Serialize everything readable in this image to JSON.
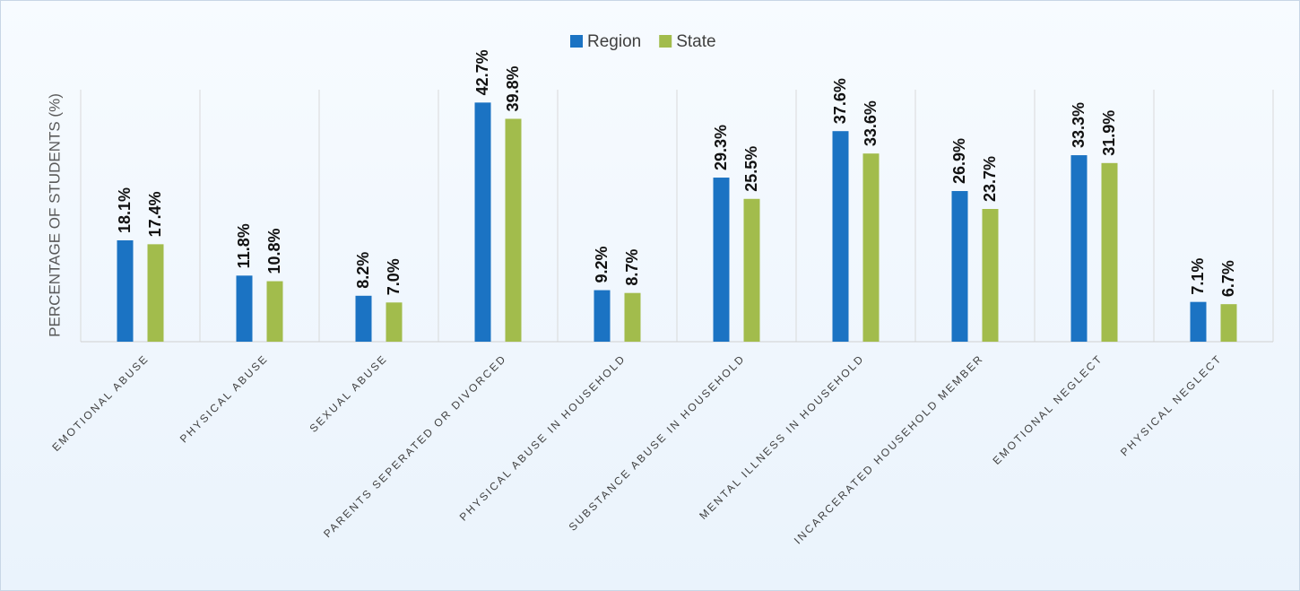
{
  "chart_data": {
    "type": "bar",
    "ylabel": "PERCENTAGE OF STUDENTS (%)",
    "categories": [
      "EMOTIONAL ABUSE",
      "PHYSICAL ABUSE",
      "SEXUAL ABUSE",
      "PARENTS SEPERATED OR DIVORCED",
      "PHYSICAL ABUSE IN HOUSEHOLD",
      "SUBSTANCE ABUSE IN HOUSEHOLD",
      "MENTAL ILLNESS IN HOUSEHOLD",
      "INCARCERATED HOUSEHOLD MEMBER",
      "EMOTIONAL NEGLECT",
      "PHYSICAL NEGLECT"
    ],
    "series": [
      {
        "name": "Region",
        "color": "#1b73c3",
        "values": [
          18.1,
          11.8,
          8.2,
          42.7,
          9.2,
          29.3,
          37.6,
          26.9,
          33.3,
          7.1
        ],
        "value_labels": [
          "18.1%",
          "11.8%",
          "8.2%",
          "42.7%",
          "9.2%",
          "29.3%",
          "37.6%",
          "26.9%",
          "33.3%",
          "7.1%"
        ]
      },
      {
        "name": "State",
        "color": "#a2bc4c",
        "values": [
          17.4,
          10.8,
          7.0,
          39.8,
          8.7,
          25.5,
          33.6,
          23.7,
          31.9,
          6.7
        ],
        "value_labels": [
          "17.4%",
          "10.8%",
          "7.0%",
          "39.8%",
          "8.7%",
          "25.5%",
          "33.6%",
          "23.7%",
          "31.9%",
          "6.7%"
        ]
      }
    ],
    "ylim": [
      0,
      45
    ],
    "legend": "top"
  }
}
